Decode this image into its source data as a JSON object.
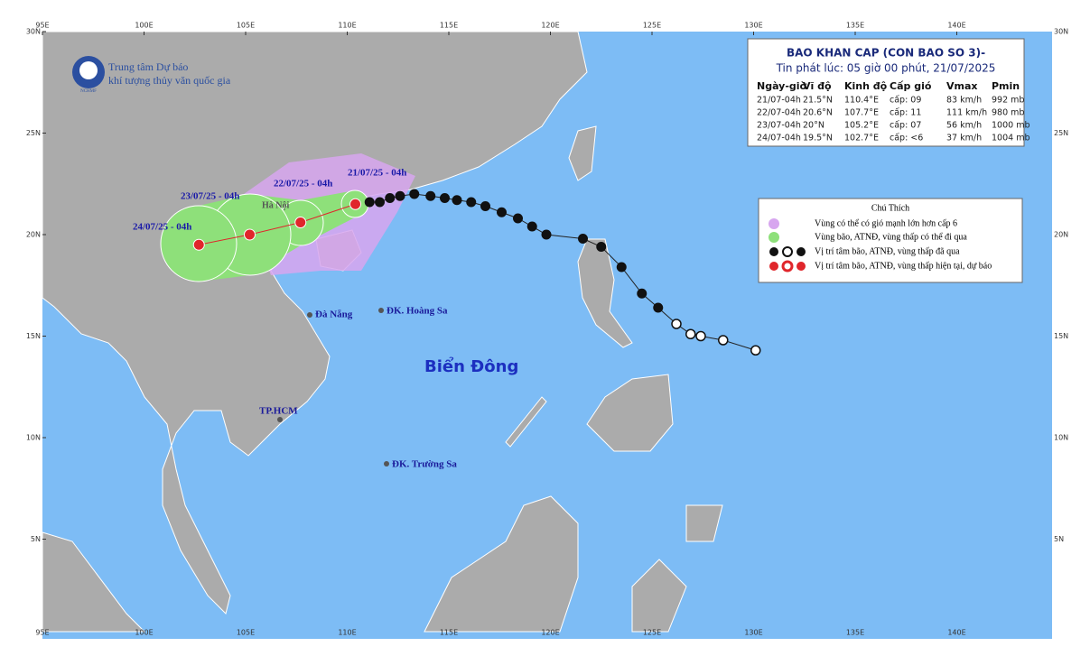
{
  "axes": {
    "lon_ticks": [
      {
        "value": 95,
        "label": "95E"
      },
      {
        "value": 100,
        "label": "100E"
      },
      {
        "value": 105,
        "label": "105E"
      },
      {
        "value": 110,
        "label": "110E"
      },
      {
        "value": 115,
        "label": "115E"
      },
      {
        "value": 120,
        "label": "120E"
      },
      {
        "value": 125,
        "label": "125E"
      },
      {
        "value": 130,
        "label": "130E"
      },
      {
        "value": 135,
        "label": "135E"
      },
      {
        "value": 140,
        "label": "140E"
      }
    ],
    "lat_ticks": [
      {
        "value": 5,
        "label": "5N"
      },
      {
        "value": 10,
        "label": "10N"
      },
      {
        "value": 15,
        "label": "15N"
      },
      {
        "value": 20,
        "label": "20N"
      },
      {
        "value": 25,
        "label": "25N"
      },
      {
        "value": 30,
        "label": "30N"
      }
    ]
  },
  "logo": {
    "line1": "Trung tâm Dự báo",
    "line2": "khí tượng thủy văn quốc gia",
    "abbr": "NCHMF"
  },
  "bulletin": {
    "title": "BAO KHAN CAP (CON BAO SO 3)-",
    "subtitle": "Tin phát lúc: 05 giờ 00 phút, 21/07/2025",
    "columns": [
      "Ngày-giờ",
      "Vĩ độ",
      "Kinh độ",
      "Cấp gió",
      "Vmax",
      "Pmin"
    ],
    "rows": [
      [
        "21/07-04h",
        "21.5°N",
        "110.4°E",
        "cấp: 09",
        "83 km/h",
        "992 mb"
      ],
      [
        "22/07-04h",
        "20.6°N",
        "107.7°E",
        "cấp: 11",
        "111 km/h",
        "980 mb"
      ],
      [
        "23/07-04h",
        "20°N",
        "105.2°E",
        "cấp: 07",
        "56 km/h",
        "1000 mb"
      ],
      [
        "24/07-04h",
        "19.5°N",
        "102.7°E",
        "cấp: <6",
        "37 km/h",
        "1004 mb"
      ]
    ]
  },
  "legend": {
    "title": "Chú Thích",
    "items": [
      "Vùng có thể có gió mạnh lớn hơn cấp 6",
      "Vùng bão, ATNĐ, vùng thấp có thể đi qua",
      "Vị trí tâm bão, ATNĐ, vùng thấp đã qua",
      "Vị trí tâm bão, ATNĐ, vùng thấp hiện tại, dự báo"
    ]
  },
  "places": [
    "Hà Nội",
    "Đà Nẵng",
    "ĐK. Hoàng Sa",
    "TP.HCM",
    "ĐK. Trường Sa"
  ],
  "sea_label": "Biển Đông",
  "forecast_labels": [
    "21/07/25 - 04h",
    "22/07/25 - 04h",
    "23/07/25 - 04h",
    "24/07/25 - 04h"
  ],
  "past_track": [
    {
      "lon": 130.1,
      "lat": 14.3
    },
    {
      "lon": 128.5,
      "lat": 14.8
    },
    {
      "lon": 127.4,
      "lat": 15.0
    },
    {
      "lon": 126.9,
      "lat": 15.1
    },
    {
      "lon": 126.2,
      "lat": 15.6
    },
    {
      "lon": 125.3,
      "lat": 16.4
    },
    {
      "lon": 124.5,
      "lat": 17.1
    },
    {
      "lon": 123.5,
      "lat": 18.4
    },
    {
      "lon": 122.5,
      "lat": 19.4
    },
    {
      "lon": 121.6,
      "lat": 19.8
    },
    {
      "lon": 119.8,
      "lat": 20.0
    },
    {
      "lon": 119.1,
      "lat": 20.4
    },
    {
      "lon": 118.4,
      "lat": 20.8
    },
    {
      "lon": 117.6,
      "lat": 21.1
    },
    {
      "lon": 116.8,
      "lat": 21.4
    },
    {
      "lon": 116.1,
      "lat": 21.6
    },
    {
      "lon": 115.4,
      "lat": 21.7
    },
    {
      "lon": 114.8,
      "lat": 21.8
    },
    {
      "lon": 114.1,
      "lat": 21.9
    },
    {
      "lon": 113.3,
      "lat": 22.0
    },
    {
      "lon": 112.6,
      "lat": 21.9
    },
    {
      "lon": 112.1,
      "lat": 21.8
    },
    {
      "lon": 111.6,
      "lat": 21.6
    },
    {
      "lon": 111.1,
      "lat": 21.6
    }
  ],
  "forecast_track": [
    {
      "lon": 110.4,
      "lat": 21.5
    },
    {
      "lon": 107.7,
      "lat": 20.6
    },
    {
      "lon": 105.2,
      "lat": 20.0
    },
    {
      "lon": 102.7,
      "lat": 19.5
    }
  ]
}
